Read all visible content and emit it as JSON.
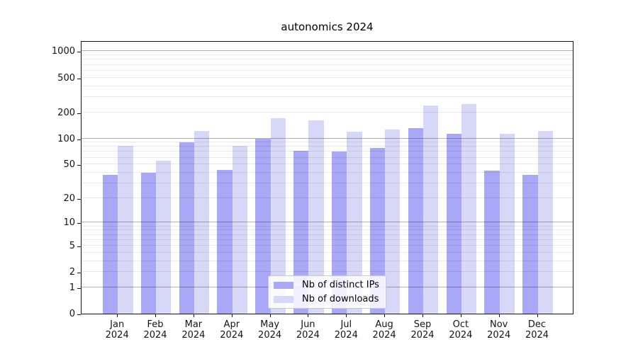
{
  "chart_data": {
    "type": "bar",
    "title": "autonomics 2024",
    "xlabel": "",
    "ylabel": "",
    "y_scale": "log-like: position = log10(1 + y)",
    "y_ticks": [
      0,
      1,
      2,
      5,
      10,
      20,
      50,
      100,
      200,
      500,
      1000
    ],
    "ylim": [
      0,
      1300
    ],
    "grid": true,
    "legend_position": "lower center",
    "months": [
      "Jan",
      "Feb",
      "Mar",
      "Apr",
      "May",
      "Jun",
      "Jul",
      "Aug",
      "Sep",
      "Oct",
      "Nov",
      "Dec"
    ],
    "year": "2024",
    "categories": [
      "Jan 2024",
      "Feb 2024",
      "Mar 2024",
      "Apr 2024",
      "May 2024",
      "Jun 2024",
      "Jul 2024",
      "Aug 2024",
      "Sep 2024",
      "Oct 2024",
      "Nov 2024",
      "Dec 2024"
    ],
    "series": [
      {
        "name": "Nb of distinct IPs",
        "key": "distinct-ips",
        "color": "#a8a8f6",
        "values": [
          38,
          40,
          90,
          43,
          100,
          72,
          70,
          78,
          131,
          113,
          42,
          38
        ]
      },
      {
        "name": "Nb of downloads",
        "key": "downloads",
        "color": "#d7d7f8",
        "values": [
          82,
          55,
          121,
          82,
          172,
          161,
          119,
          127,
          240,
          250,
          113,
          123
        ]
      }
    ]
  }
}
